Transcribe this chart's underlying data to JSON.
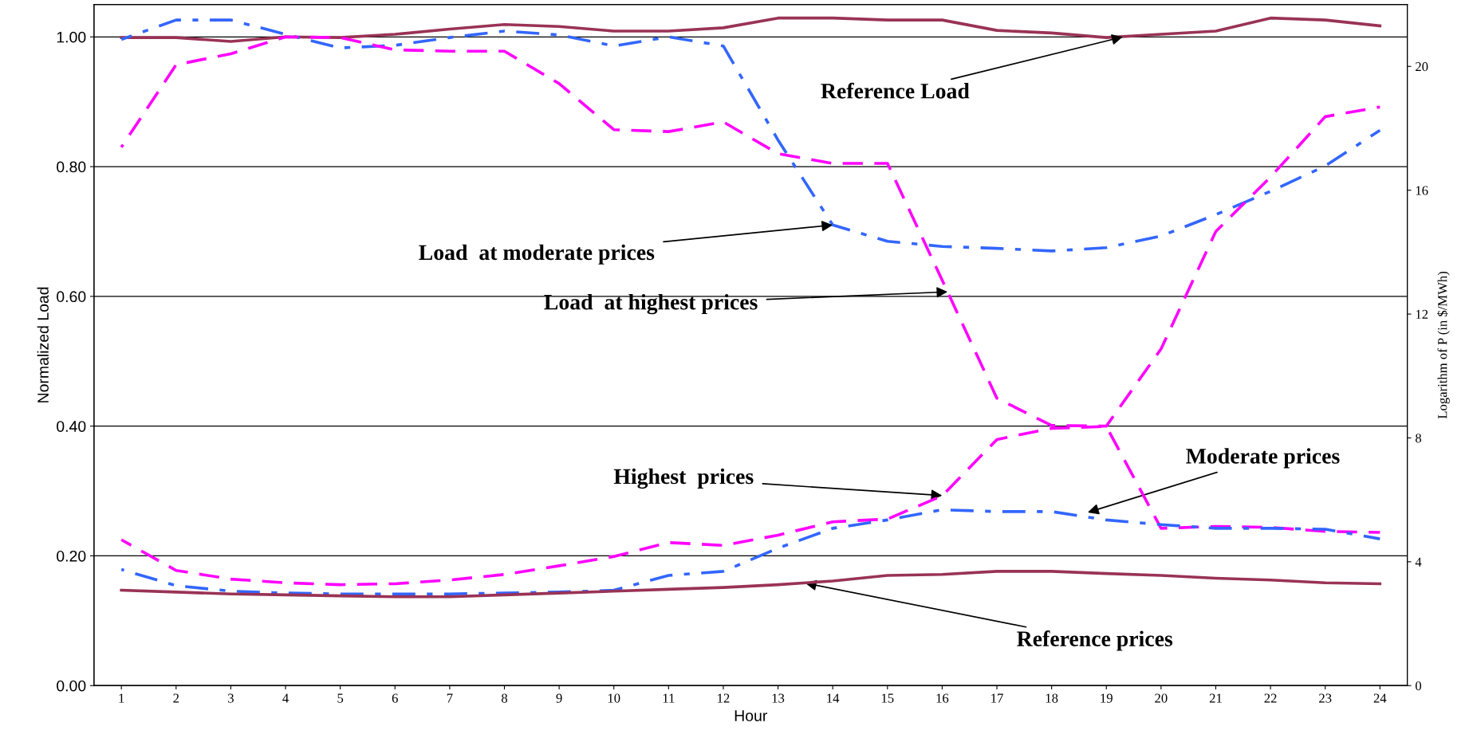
{
  "chart_data": {
    "type": "line",
    "xlabel": "Hour",
    "ylabel": "Normalized Load",
    "y2label": "Logarithm of P (in $/MWh)",
    "x": [
      1,
      2,
      3,
      4,
      5,
      6,
      7,
      8,
      9,
      10,
      11,
      12,
      13,
      14,
      15,
      16,
      17,
      18,
      19,
      20,
      21,
      22,
      23,
      24
    ],
    "xlim": [
      0.5,
      24.5
    ],
    "xticks": [
      1,
      2,
      3,
      4,
      5,
      6,
      7,
      8,
      9,
      10,
      11,
      12,
      13,
      14,
      15,
      16,
      17,
      18,
      19,
      20,
      21,
      22,
      23,
      24
    ],
    "ylim": [
      0,
      1.05
    ],
    "yticks": [
      {
        "value": 0,
        "label": "0.00"
      },
      {
        "value": 0.2,
        "label": "0.20"
      },
      {
        "value": 0.4,
        "label": "0.40"
      },
      {
        "value": 0.6,
        "label": "0.60"
      },
      {
        "value": 0.8,
        "label": "0.80"
      },
      {
        "value": 1.0,
        "label": "1.00"
      }
    ],
    "y2lim": [
      0,
      22
    ],
    "y2ticks": [
      0,
      4,
      8,
      12,
      16,
      20
    ],
    "grid": "y",
    "marker": "none",
    "series": [
      {
        "color": "#993355",
        "line_style": "solid",
        "axis": "y",
        "values": [
          0.999,
          0.999,
          0.993,
          1.0,
          0.999,
          1.004,
          1.012,
          1.019,
          1.016,
          1.009,
          1.009,
          1.014,
          1.029,
          1.029,
          1.026,
          1.026,
          1.01,
          1.006,
          0.999,
          1.004,
          1.009,
          1.029,
          1.026,
          1.017
        ]
      },
      {
        "color": "#3366ff",
        "line_style": "dashdot",
        "axis": "y",
        "values": [
          0.996,
          1.026,
          1.026,
          1.004,
          0.983,
          0.987,
          0.999,
          1.009,
          1.003,
          0.986,
          1.0,
          0.986,
          0.841,
          0.71,
          0.685,
          0.677,
          0.674,
          0.67,
          0.675,
          0.693,
          0.726,
          0.762,
          0.801,
          0.856
        ]
      },
      {
        "color": "#ff00ff",
        "line_style": "dashed",
        "axis": "y",
        "values": [
          0.83,
          0.957,
          0.974,
          1.0,
          0.999,
          0.98,
          0.978,
          0.978,
          0.928,
          0.857,
          0.854,
          0.869,
          0.82,
          0.805,
          0.805,
          0.625,
          0.443,
          0.401,
          0.4,
          0.519,
          0.7,
          0.784,
          0.877,
          0.892
        ]
      },
      {
        "color": "#ff00ff",
        "line_style": "dashed",
        "axis": "y2",
        "values": [
          4.71,
          3.72,
          3.44,
          3.32,
          3.26,
          3.29,
          3.41,
          3.59,
          3.87,
          4.17,
          4.62,
          4.53,
          4.86,
          5.29,
          5.38,
          6.13,
          7.95,
          8.31,
          8.37,
          5.08,
          5.14,
          5.11,
          4.98,
          4.95
        ]
      },
      {
        "color": "#3366ff",
        "line_style": "dashdot",
        "axis": "y2",
        "values": [
          3.75,
          3.23,
          3.05,
          2.99,
          2.96,
          2.96,
          2.96,
          2.99,
          3.02,
          3.08,
          3.56,
          3.69,
          4.44,
          5.08,
          5.35,
          5.68,
          5.62,
          5.62,
          5.35,
          5.2,
          5.08,
          5.08,
          5.05,
          4.74
        ]
      },
      {
        "color": "#993355",
        "line_style": "solid",
        "axis": "y2",
        "values": [
          3.08,
          3.02,
          2.96,
          2.93,
          2.9,
          2.87,
          2.87,
          2.93,
          2.99,
          3.05,
          3.11,
          3.17,
          3.26,
          3.38,
          3.56,
          3.59,
          3.69,
          3.69,
          3.62,
          3.56,
          3.47,
          3.41,
          3.32,
          3.29
        ]
      }
    ],
    "annotations": [
      {
        "text": "Reference Load",
        "x": 19.3,
        "y": 1.0
      },
      {
        "text": "Load  at moderate prices",
        "x": 14,
        "y": 0.71
      },
      {
        "text": "Load  at highest prices",
        "x": 16.1,
        "y": 0.607
      },
      {
        "text": "Highest  prices",
        "x": 16,
        "y": 0.293
      },
      {
        "text": "Moderate prices",
        "x": 18.66,
        "y": 0.267
      },
      {
        "text": "Reference prices",
        "x": 13.5,
        "y": 0.158
      }
    ]
  }
}
